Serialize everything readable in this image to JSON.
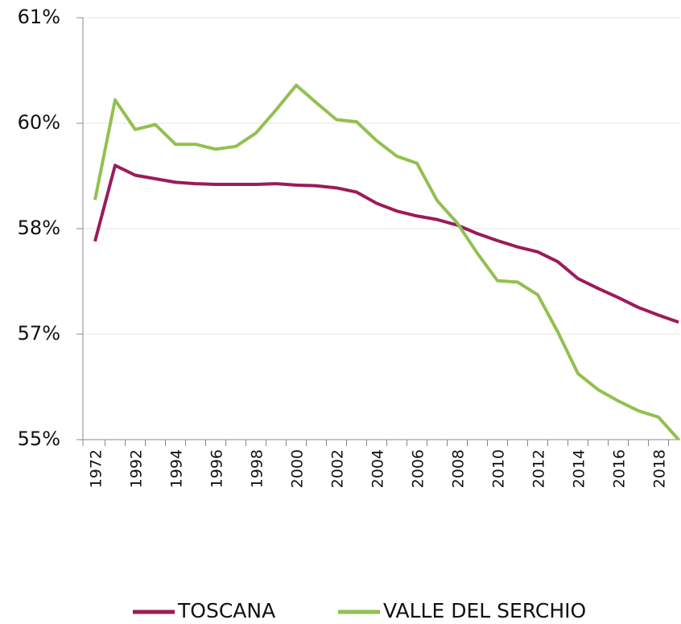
{
  "chart_data": {
    "type": "line",
    "categories": [
      "1972",
      null,
      "1992",
      null,
      "1994",
      null,
      "1996",
      null,
      "1998",
      null,
      "2000",
      null,
      "2002",
      null,
      "2004",
      null,
      "2006",
      null,
      "2008",
      null,
      "2010",
      null,
      "2012",
      null,
      "2014",
      null,
      "2016",
      null,
      "2018",
      null
    ],
    "series": [
      {
        "name": "TOSCANA",
        "color": "#9b1b5a",
        "values": [
          57.82,
          58.9,
          58.76,
          58.71,
          58.66,
          58.64,
          58.63,
          58.63,
          58.63,
          58.64,
          58.62,
          58.61,
          58.58,
          58.52,
          58.36,
          58.25,
          58.18,
          58.13,
          58.05,
          57.93,
          57.83,
          57.74,
          57.67,
          57.53,
          57.29,
          57.15,
          57.02,
          56.88,
          56.77,
          56.67
        ]
      },
      {
        "name": "VALLE DEL SERCHIO",
        "color": "#92c050",
        "values": [
          58.41,
          59.83,
          59.41,
          59.48,
          59.2,
          59.2,
          59.13,
          59.17,
          59.36,
          59.69,
          60.04,
          59.79,
          59.55,
          59.52,
          59.25,
          59.03,
          58.93,
          58.4,
          58.08,
          57.65,
          57.26,
          57.24,
          57.06,
          56.53,
          55.94,
          55.71,
          55.55,
          55.41,
          55.32,
          55.0
        ]
      }
    ],
    "ylim": [
      55,
      61
    ],
    "yticks": [
      {
        "value": 55,
        "label": "55%"
      },
      {
        "value": 56.5,
        "label": "57%"
      },
      {
        "value": 58,
        "label": "58%"
      },
      {
        "value": 59.5,
        "label": "60%"
      },
      {
        "value": 61,
        "label": "61%"
      }
    ],
    "grid": true,
    "legend": "bottom"
  }
}
